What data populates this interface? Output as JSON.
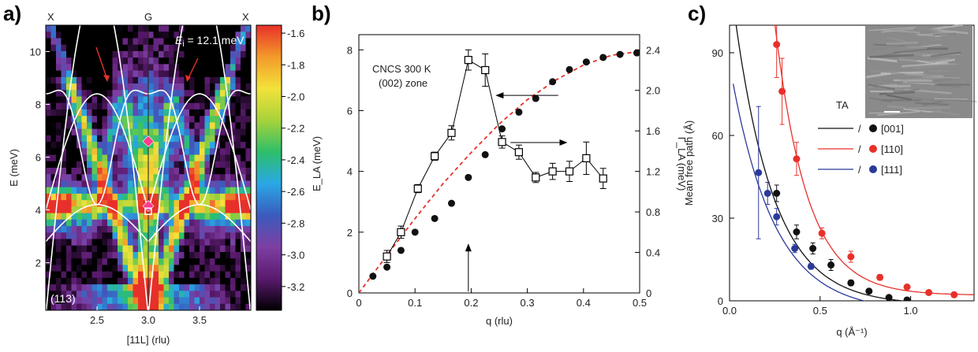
{
  "chart_data": [
    {
      "type": "heatmap",
      "panel_label": "a)",
      "top_labels": [
        "X",
        "G",
        "X"
      ],
      "energy_label": "E_i = 12.1 meV",
      "energy_label_parts": {
        "symbol": "E",
        "subscript": "i",
        "rest": " = 12.1 meV"
      },
      "zone_label": "(113)",
      "xlabel": "[11L] (rlu)",
      "ylabel": "E (meV)",
      "xlim": [
        2.0,
        4.0
      ],
      "ylim": [
        0.2,
        11.0
      ],
      "xticks": [
        "2.5",
        "3.0",
        "3.5"
      ],
      "yticks": [
        "2",
        "4",
        "6",
        "8",
        "10"
      ],
      "colorbar": {
        "ticks": [
          "-1.6",
          "-1.8",
          "-2.0",
          "-2.2",
          "-2.4",
          "-2.6",
          "-2.8",
          "-3.0",
          "-3.2"
        ],
        "range": [
          -3.35,
          -1.55
        ],
        "colors": [
          "#000000",
          "#5a1a6e",
          "#7e3fa3",
          "#3a5bbd",
          "#2aa8e6",
          "#2cbf6a",
          "#a8d23a",
          "#f3e23a",
          "#f39a2a",
          "#e8302a"
        ]
      },
      "markers": [
        {
          "shape": "diamond",
          "color": "#ff3b8d",
          "x": 3.0,
          "y": 6.6
        },
        {
          "shape": "diamond",
          "color": "#ff3b8d",
          "x": 3.0,
          "y": 4.15
        },
        {
          "shape": "square",
          "color": "#ffffff",
          "x": 3.0,
          "y": 3.95
        }
      ]
    },
    {
      "type": "scatter",
      "panel_label": "b)",
      "annotation": [
        "CNCS 300 K",
        "(002) zone"
      ],
      "xlabel": "q (rlu)",
      "ylabel_left": "E_LA (meV)",
      "ylabel_right": "Γ_LA (meV)",
      "xlim": [
        0,
        0.5
      ],
      "ylim_left": [
        0,
        8.5
      ],
      "ylim_right": [
        0,
        2.55
      ],
      "xticks": [
        "0",
        "0.1",
        "0.2",
        "0.3",
        "0.4",
        "0.5"
      ],
      "yticks_left": [
        "0",
        "2",
        "4",
        "6",
        "8"
      ],
      "yticks_right": [
        "0",
        "0.4",
        "0.8",
        "1.2",
        "1.6",
        "2.0",
        "2.4"
      ],
      "series": [
        {
          "marker": "filled-circle",
          "axis": "left",
          "x": [
            0.025,
            0.05,
            0.075,
            0.1,
            0.135,
            0.165,
            0.195,
            0.225,
            0.255,
            0.285,
            0.315,
            0.345,
            0.375,
            0.405,
            0.435,
            0.465,
            0.495
          ],
          "y": [
            0.55,
            0.85,
            1.4,
            2.0,
            2.45,
            2.95,
            3.8,
            4.55,
            5.4,
            5.95,
            6.4,
            6.95,
            7.35,
            7.6,
            7.75,
            7.85,
            7.9
          ]
        },
        {
          "marker": "open-square",
          "axis": "right",
          "x": [
            0.05,
            0.075,
            0.105,
            0.135,
            0.165,
            0.195,
            0.225,
            0.255,
            0.285,
            0.315,
            0.345,
            0.375,
            0.405,
            0.435
          ],
          "y": [
            0.36,
            0.6,
            1.03,
            1.35,
            1.58,
            2.3,
            2.2,
            1.49,
            1.39,
            1.14,
            1.2,
            1.2,
            1.33,
            1.13
          ],
          "err": [
            0.06,
            0.06,
            0.04,
            0.04,
            0.07,
            0.1,
            0.16,
            0.06,
            0.07,
            0.05,
            0.08,
            0.1,
            0.16,
            0.1
          ]
        },
        {
          "style": "dashed-curve",
          "color": "#e8302a",
          "axis": "left",
          "x": [
            0,
            0.05,
            0.1,
            0.15,
            0.2,
            0.25,
            0.3,
            0.35,
            0.4,
            0.45,
            0.5
          ],
          "y": [
            0,
            1.24,
            2.45,
            3.6,
            4.62,
            5.56,
            6.36,
            7.0,
            7.5,
            7.82,
            7.95
          ]
        }
      ],
      "arrows": [
        {
          "from": [
            0.355,
            6.5
          ],
          "to": [
            0.245,
            6.5
          ]
        },
        {
          "from": [
            0.27,
            4.95
          ],
          "to": [
            0.37,
            4.95
          ]
        },
        {
          "from": [
            0.195,
            0.05
          ],
          "to": [
            0.195,
            1.6
          ]
        }
      ]
    },
    {
      "type": "scatter",
      "panel_label": "c)",
      "xlabel": "q (Å⁻¹)",
      "ylabel": "Mean free path (Å)",
      "xlim": [
        0,
        1.35
      ],
      "ylim": [
        0,
        100
      ],
      "xticks": [
        "0.0",
        "0.5",
        "1.0"
      ],
      "yticks": [
        "0",
        "30",
        "60",
        "90"
      ],
      "inset_label": "TA",
      "legend": [
        {
          "label": "[001]",
          "color": "#111111"
        },
        {
          "label": "[110]",
          "color": "#e8302a"
        },
        {
          "label": "[111]",
          "color": "#2b3a9a"
        }
      ],
      "legend_separator": "/",
      "series": [
        {
          "name": "[001]",
          "color": "#111111",
          "x": [
            0.26,
            0.37,
            0.46,
            0.56,
            0.67,
            0.77,
            0.88,
            0.98
          ],
          "y": [
            39,
            25,
            19,
            13,
            6.5,
            3.5,
            1.2,
            0.3
          ],
          "err": [
            3,
            2.5,
            2,
            2,
            1,
            0.7,
            0.5,
            0.3
          ]
        },
        {
          "name": "[110]",
          "color": "#e8302a",
          "x": [
            0.26,
            0.29,
            0.37,
            0.51,
            0.67,
            0.83,
            0.98,
            1.1,
            1.24
          ],
          "y": [
            93,
            76,
            51.5,
            24.5,
            16,
            8.5,
            5,
            3,
            2.2
          ],
          "err": [
            12,
            12,
            6,
            2,
            2,
            1,
            0.7,
            0.5,
            0.5
          ]
        },
        {
          "name": "[111]",
          "color": "#2b3a9a",
          "x": [
            0.16,
            0.21,
            0.26,
            0.36,
            0.45
          ],
          "y": [
            46.5,
            39,
            30.5,
            19,
            12.5
          ],
          "err": [
            24,
            4,
            3,
            1.5,
            1
          ]
        }
      ]
    }
  ]
}
